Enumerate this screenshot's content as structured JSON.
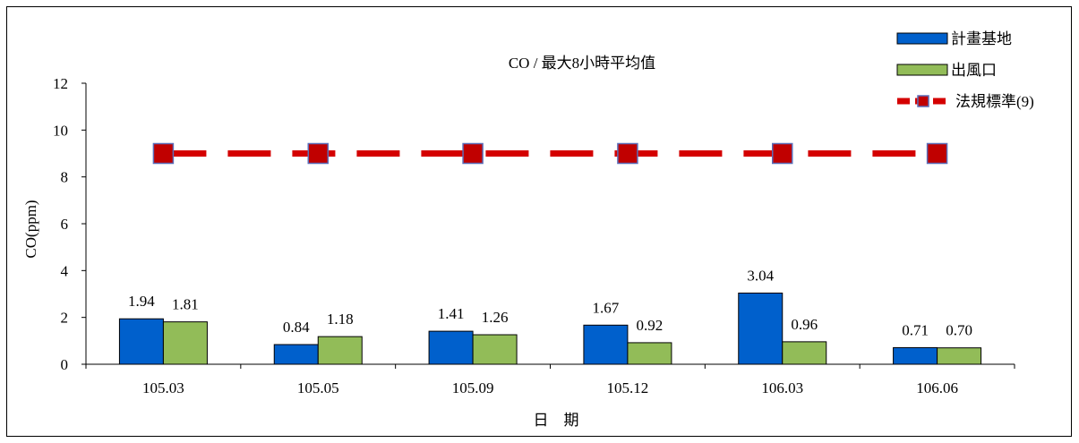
{
  "chart_data": {
    "type": "bar",
    "title": "CO / 最大8小時平均值",
    "xlabel": "日　期",
    "ylabel": "CO(ppm)",
    "ylim": [
      0,
      12
    ],
    "yticks": [
      "0",
      "2",
      "4",
      "6",
      "8",
      "10",
      "12"
    ],
    "categories": [
      "105.03",
      "105.05",
      "105.09",
      "105.12",
      "106.03",
      "106.06"
    ],
    "series": [
      {
        "name": "計畫基地",
        "values": [
          1.94,
          0.84,
          1.41,
          1.67,
          3.04,
          0.71
        ],
        "labels": [
          "1.94",
          "0.84",
          "1.41",
          "1.67",
          "3.04",
          "0.71"
        ],
        "color": "#0060cc"
      },
      {
        "name": "出風口",
        "values": [
          1.81,
          1.18,
          1.26,
          0.92,
          0.96,
          0.7
        ],
        "labels": [
          "1.81",
          "1.18",
          "1.26",
          "0.92",
          "0.96",
          "0.70"
        ],
        "color": "#92bc58"
      }
    ],
    "standard": {
      "name": "法規標準(9)",
      "value": 9,
      "line_color": "#d40000",
      "marker_color": "#c00000",
      "marker_edge": "#5b6db8"
    },
    "grid": false,
    "legend_position": "top-right"
  }
}
